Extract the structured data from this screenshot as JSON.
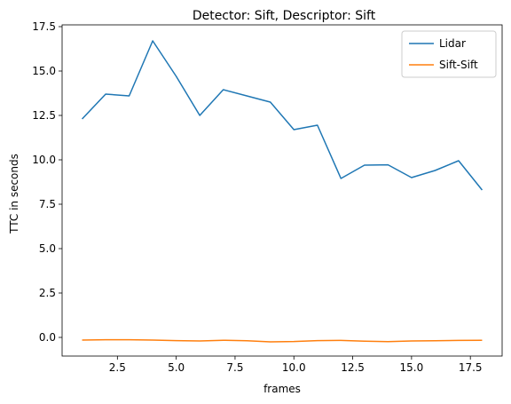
{
  "chart_data": {
    "type": "line",
    "title": "Detector: Sift, Descriptor: Sift",
    "xlabel": "frames",
    "ylabel": "TTC in seconds",
    "xlim": [
      0.15,
      18.85
    ],
    "ylim": [
      -1.05,
      17.6
    ],
    "xticks": [
      2.5,
      5.0,
      7.5,
      10.0,
      12.5,
      15.0,
      17.5
    ],
    "xtick_labels": [
      "2.5",
      "5.0",
      "7.5",
      "10.0",
      "12.5",
      "15.0",
      "17.5"
    ],
    "yticks": [
      0.0,
      2.5,
      5.0,
      7.5,
      10.0,
      12.5,
      15.0,
      17.5
    ],
    "ytick_labels": [
      "0.0",
      "2.5",
      "5.0",
      "7.5",
      "10.0",
      "12.5",
      "15.0",
      "17.5"
    ],
    "grid": false,
    "legend_position": "top-right",
    "x": [
      1,
      2,
      3,
      4,
      5,
      6,
      7,
      8,
      9,
      10,
      11,
      12,
      13,
      14,
      15,
      16,
      17,
      18
    ],
    "series": [
      {
        "name": "Lidar",
        "color": "#1f77b4",
        "values": [
          12.3,
          13.7,
          13.6,
          16.7,
          14.7,
          12.5,
          13.95,
          13.6,
          13.25,
          11.7,
          11.95,
          8.95,
          9.7,
          9.72,
          9.0,
          9.4,
          9.95,
          8.3
        ]
      },
      {
        "name": "Sift-Sift",
        "color": "#ff7f0e",
        "values": [
          -0.15,
          -0.13,
          -0.13,
          -0.15,
          -0.18,
          -0.2,
          -0.16,
          -0.19,
          -0.25,
          -0.23,
          -0.18,
          -0.17,
          -0.21,
          -0.24,
          -0.2,
          -0.19,
          -0.17,
          -0.16
        ]
      }
    ]
  }
}
